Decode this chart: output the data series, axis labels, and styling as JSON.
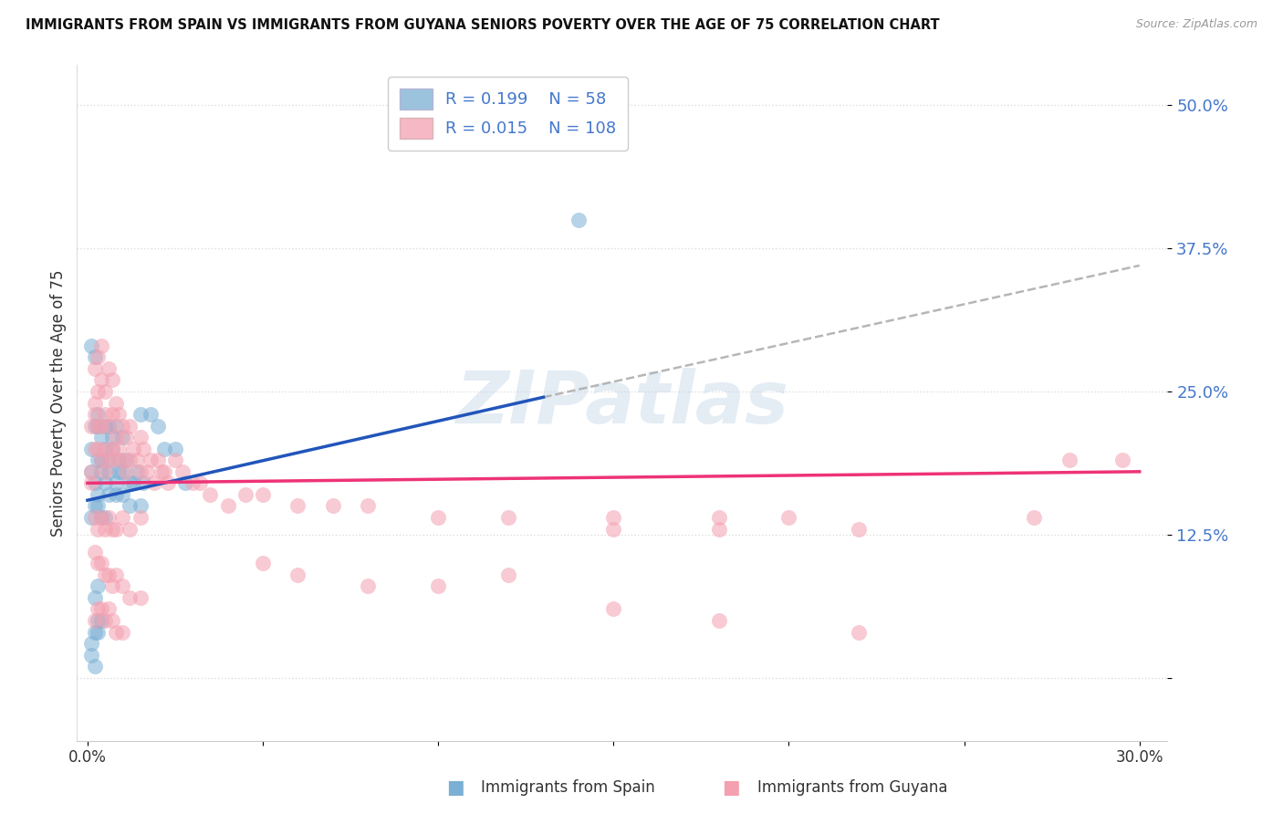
{
  "title": "IMMIGRANTS FROM SPAIN VS IMMIGRANTS FROM GUYANA SENIORS POVERTY OVER THE AGE OF 75 CORRELATION CHART",
  "source": "Source: ZipAtlas.com",
  "ylabel": "Seniors Poverty Over the Age of 75",
  "legend_r_blue": "0.199",
  "legend_n_blue": "58",
  "legend_r_pink": "0.015",
  "legend_n_pink": "108",
  "legend_label_blue": "Immigrants from Spain",
  "legend_label_pink": "Immigrants from Guyana",
  "blue_color": "#7BAFD4",
  "pink_color": "#F4A0B0",
  "trend_blue_color": "#2255BB",
  "trend_pink_color": "#EE3377",
  "dash_color": "#AAAAAA",
  "label_color": "#4477CC",
  "grid_color": "#DDDDDD",
  "watermark_color": "#C5D5E8",
  "xlim": [
    -0.003,
    0.308
  ],
  "ylim": [
    -0.055,
    0.535
  ],
  "yticks": [
    0.0,
    0.125,
    0.25,
    0.375,
    0.5
  ],
  "ytick_labels": [
    "",
    "12.5%",
    "25.0%",
    "37.5%",
    "50.0%"
  ],
  "xticks": [
    0.0,
    0.05,
    0.1,
    0.15,
    0.2,
    0.25,
    0.3
  ],
  "xtick_labels": [
    "0.0%",
    "",
    "",
    "",
    "",
    "",
    "30.0%"
  ],
  "blue_trend_x0": 0.0,
  "blue_trend_y0": 0.155,
  "blue_trend_x1": 0.13,
  "blue_trend_y1": 0.245,
  "dash_trend_x0": 0.13,
  "dash_trend_y0": 0.245,
  "dash_trend_x1": 0.3,
  "dash_trend_y1": 0.36,
  "pink_trend_x0": 0.0,
  "pink_trend_y0": 0.17,
  "pink_trend_x1": 0.3,
  "pink_trend_y1": 0.18,
  "blue_x": [
    0.001,
    0.001,
    0.001,
    0.002,
    0.002,
    0.002,
    0.003,
    0.003,
    0.003,
    0.003,
    0.004,
    0.004,
    0.004,
    0.005,
    0.005,
    0.005,
    0.006,
    0.006,
    0.006,
    0.007,
    0.007,
    0.008,
    0.008,
    0.009,
    0.009,
    0.01,
    0.01,
    0.011,
    0.012,
    0.013,
    0.014,
    0.015,
    0.016,
    0.018,
    0.02,
    0.022,
    0.025,
    0.028,
    0.001,
    0.002,
    0.003,
    0.004,
    0.005,
    0.006,
    0.008,
    0.01,
    0.012,
    0.015,
    0.001,
    0.002,
    0.003,
    0.004,
    0.002,
    0.003,
    0.14,
    0.001,
    0.002,
    0.003
  ],
  "blue_y": [
    0.18,
    0.29,
    0.2,
    0.28,
    0.22,
    0.17,
    0.23,
    0.22,
    0.19,
    0.16,
    0.21,
    0.19,
    0.18,
    0.22,
    0.2,
    0.17,
    0.19,
    0.22,
    0.18,
    0.21,
    0.2,
    0.17,
    0.22,
    0.19,
    0.18,
    0.21,
    0.18,
    0.19,
    0.17,
    0.17,
    0.18,
    0.23,
    0.17,
    0.23,
    0.22,
    0.2,
    0.2,
    0.17,
    0.14,
    0.15,
    0.15,
    0.14,
    0.14,
    0.16,
    0.16,
    0.16,
    0.15,
    0.15,
    0.03,
    0.04,
    0.05,
    0.05,
    0.01,
    0.08,
    0.4,
    0.02,
    0.07,
    0.04
  ],
  "pink_x": [
    0.001,
    0.001,
    0.001,
    0.002,
    0.002,
    0.002,
    0.002,
    0.003,
    0.003,
    0.003,
    0.003,
    0.004,
    0.004,
    0.004,
    0.004,
    0.005,
    0.005,
    0.005,
    0.005,
    0.006,
    0.006,
    0.006,
    0.007,
    0.007,
    0.007,
    0.008,
    0.008,
    0.008,
    0.009,
    0.009,
    0.01,
    0.01,
    0.011,
    0.011,
    0.012,
    0.012,
    0.013,
    0.014,
    0.015,
    0.015,
    0.016,
    0.017,
    0.018,
    0.019,
    0.02,
    0.021,
    0.022,
    0.023,
    0.025,
    0.027,
    0.03,
    0.032,
    0.035,
    0.04,
    0.045,
    0.05,
    0.06,
    0.07,
    0.08,
    0.1,
    0.002,
    0.003,
    0.004,
    0.005,
    0.006,
    0.007,
    0.008,
    0.01,
    0.012,
    0.015,
    0.002,
    0.003,
    0.004,
    0.005,
    0.006,
    0.007,
    0.008,
    0.01,
    0.012,
    0.015,
    0.002,
    0.003,
    0.004,
    0.005,
    0.006,
    0.007,
    0.008,
    0.01,
    0.12,
    0.15,
    0.18,
    0.2,
    0.28,
    0.15,
    0.18,
    0.22,
    0.27,
    0.295,
    0.05,
    0.06,
    0.08,
    0.1,
    0.12,
    0.15,
    0.18,
    0.22
  ],
  "pink_y": [
    0.18,
    0.22,
    0.17,
    0.27,
    0.24,
    0.23,
    0.2,
    0.28,
    0.25,
    0.22,
    0.2,
    0.29,
    0.26,
    0.22,
    0.19,
    0.25,
    0.23,
    0.2,
    0.18,
    0.27,
    0.22,
    0.19,
    0.26,
    0.23,
    0.2,
    0.24,
    0.21,
    0.19,
    0.23,
    0.2,
    0.22,
    0.19,
    0.21,
    0.18,
    0.22,
    0.19,
    0.2,
    0.19,
    0.21,
    0.18,
    0.2,
    0.18,
    0.19,
    0.17,
    0.19,
    0.18,
    0.18,
    0.17,
    0.19,
    0.18,
    0.17,
    0.17,
    0.16,
    0.15,
    0.16,
    0.16,
    0.15,
    0.15,
    0.15,
    0.14,
    0.14,
    0.13,
    0.14,
    0.13,
    0.14,
    0.13,
    0.13,
    0.14,
    0.13,
    0.14,
    0.11,
    0.1,
    0.1,
    0.09,
    0.09,
    0.08,
    0.09,
    0.08,
    0.07,
    0.07,
    0.05,
    0.06,
    0.06,
    0.05,
    0.06,
    0.05,
    0.04,
    0.04,
    0.14,
    0.14,
    0.14,
    0.14,
    0.19,
    0.13,
    0.13,
    0.13,
    0.14,
    0.19,
    0.1,
    0.09,
    0.08,
    0.08,
    0.09,
    0.06,
    0.05,
    0.04
  ]
}
